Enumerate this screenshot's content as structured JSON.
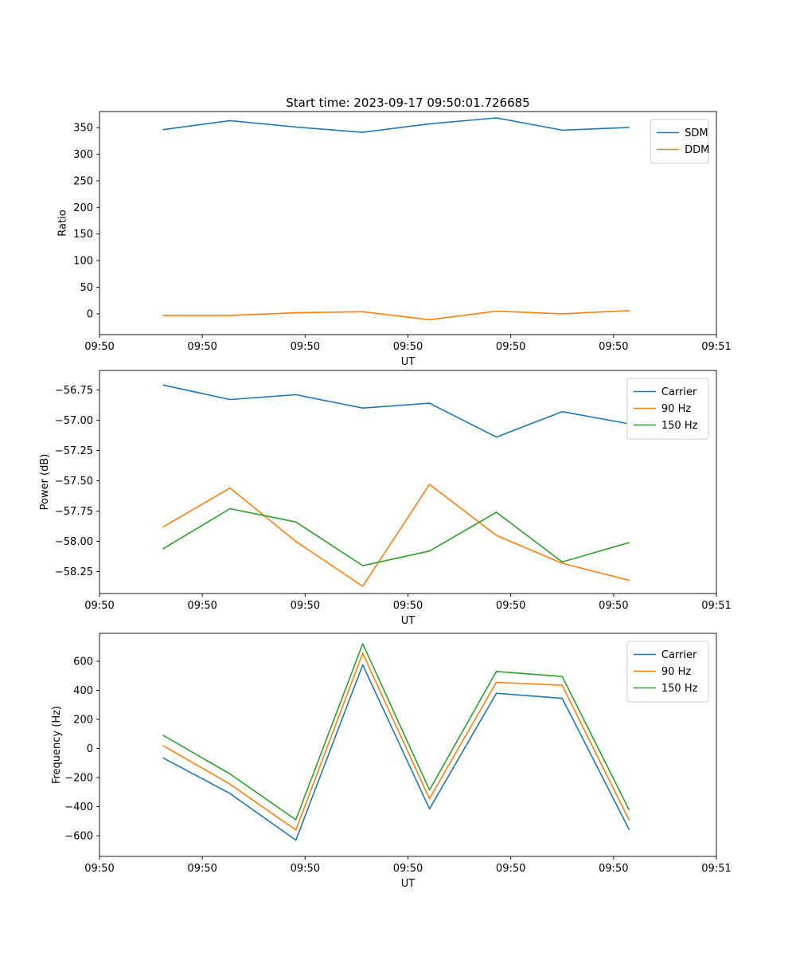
{
  "figure": {
    "title": "Start time: 2023-09-17 09:50:01.726685",
    "background": "#ffffff",
    "colors": {
      "blue": "#1f77b4",
      "orange": "#ff7f0e",
      "green": "#2ca02c",
      "legend_border": "#cccccc",
      "axis": "#000000"
    }
  },
  "chart_data": [
    {
      "type": "line",
      "title": "Start time: 2023-09-17 09:50:01.726685",
      "xlabel": "UT",
      "ylabel": "Ratio",
      "xlim": [
        0,
        60
      ],
      "ylim": [
        -39,
        380
      ],
      "grid": false,
      "legend_position": "upper right",
      "xticks": {
        "positions": [
          0,
          10,
          20,
          30,
          40,
          50,
          60
        ],
        "labels": [
          "09:50",
          "09:50",
          "09:50",
          "09:50",
          "09:50",
          "09:50",
          "09:51"
        ]
      },
      "yticks": [
        {
          "v": 0,
          "label": "0"
        },
        {
          "v": 50,
          "label": "50"
        },
        {
          "v": 100,
          "label": "100"
        },
        {
          "v": 150,
          "label": "150"
        },
        {
          "v": 200,
          "label": "200"
        },
        {
          "v": 250,
          "label": "250"
        },
        {
          "v": 300,
          "label": "300"
        },
        {
          "v": 350,
          "label": "350"
        }
      ],
      "x": [
        6.2,
        12.7,
        19.1,
        25.6,
        32.1,
        38.6,
        45.0,
        51.5
      ],
      "series": [
        {
          "name": "SDM",
          "color": "#1f77b4",
          "values": [
            346,
            363,
            351,
            341,
            357,
            368,
            345,
            350
          ]
        },
        {
          "name": "DDM",
          "color": "#ff7f0e",
          "values": [
            -3,
            -3,
            2,
            4,
            -11,
            5,
            0,
            6
          ]
        }
      ]
    },
    {
      "type": "line",
      "title": "",
      "xlabel": "UT",
      "ylabel": "Power (dB)",
      "xlim": [
        0,
        60
      ],
      "ylim": [
        -58.43,
        -56.59
      ],
      "grid": false,
      "legend_position": "upper right",
      "xticks": {
        "positions": [
          0,
          10,
          20,
          30,
          40,
          50,
          60
        ],
        "labels": [
          "09:50",
          "09:50",
          "09:50",
          "09:50",
          "09:50",
          "09:50",
          "09:51"
        ]
      },
      "yticks": [
        {
          "v": -56.75,
          "label": "−56.75"
        },
        {
          "v": -57.0,
          "label": "−57.00"
        },
        {
          "v": -57.25,
          "label": "−57.25"
        },
        {
          "v": -57.5,
          "label": "−57.50"
        },
        {
          "v": -57.75,
          "label": "−57.75"
        },
        {
          "v": -58.0,
          "label": "−58.00"
        },
        {
          "v": -58.25,
          "label": "−58.25"
        }
      ],
      "x": [
        6.2,
        12.7,
        19.1,
        25.6,
        32.1,
        38.6,
        45.0,
        51.5
      ],
      "series": [
        {
          "name": "Carrier",
          "color": "#1f77b4",
          "values": [
            -56.71,
            -56.83,
            -56.79,
            -56.9,
            -56.86,
            -57.14,
            -56.93,
            -57.03
          ]
        },
        {
          "name": "90 Hz",
          "color": "#ff7f0e",
          "values": [
            -57.88,
            -57.56,
            -58.0,
            -58.37,
            -57.53,
            -57.95,
            -58.18,
            -58.32
          ]
        },
        {
          "name": "150 Hz",
          "color": "#2ca02c",
          "values": [
            -58.06,
            -57.73,
            -57.84,
            -58.2,
            -58.08,
            -57.76,
            -58.17,
            -58.01
          ]
        }
      ]
    },
    {
      "type": "line",
      "title": "",
      "xlabel": "UT",
      "ylabel": "Frequency (Hz)",
      "xlim": [
        0,
        60
      ],
      "ylim": [
        -742,
        792
      ],
      "grid": false,
      "legend_position": "upper right",
      "xticks": {
        "positions": [
          0,
          10,
          20,
          30,
          40,
          50,
          60
        ],
        "labels": [
          "09:50",
          "09:50",
          "09:50",
          "09:50",
          "09:50",
          "09:50",
          "09:51"
        ]
      },
      "yticks": [
        {
          "v": -600,
          "label": "−600"
        },
        {
          "v": -400,
          "label": "−400"
        },
        {
          "v": -200,
          "label": "−200"
        },
        {
          "v": 0,
          "label": "0"
        },
        {
          "v": 200,
          "label": "200"
        },
        {
          "v": 400,
          "label": "400"
        },
        {
          "v": 600,
          "label": "600"
        }
      ],
      "x": [
        6.2,
        12.7,
        19.1,
        25.6,
        32.1,
        38.6,
        45.0,
        51.5
      ],
      "series": [
        {
          "name": "Carrier",
          "color": "#1f77b4",
          "values": [
            -65,
            -310,
            -630,
            575,
            -415,
            380,
            345,
            -555
          ]
        },
        {
          "name": "90 Hz",
          "color": "#ff7f0e",
          "values": [
            20,
            -245,
            -560,
            655,
            -345,
            455,
            435,
            -490
          ]
        },
        {
          "name": "150 Hz",
          "color": "#2ca02c",
          "values": [
            90,
            -175,
            -490,
            720,
            -285,
            530,
            495,
            -420
          ]
        }
      ]
    }
  ]
}
